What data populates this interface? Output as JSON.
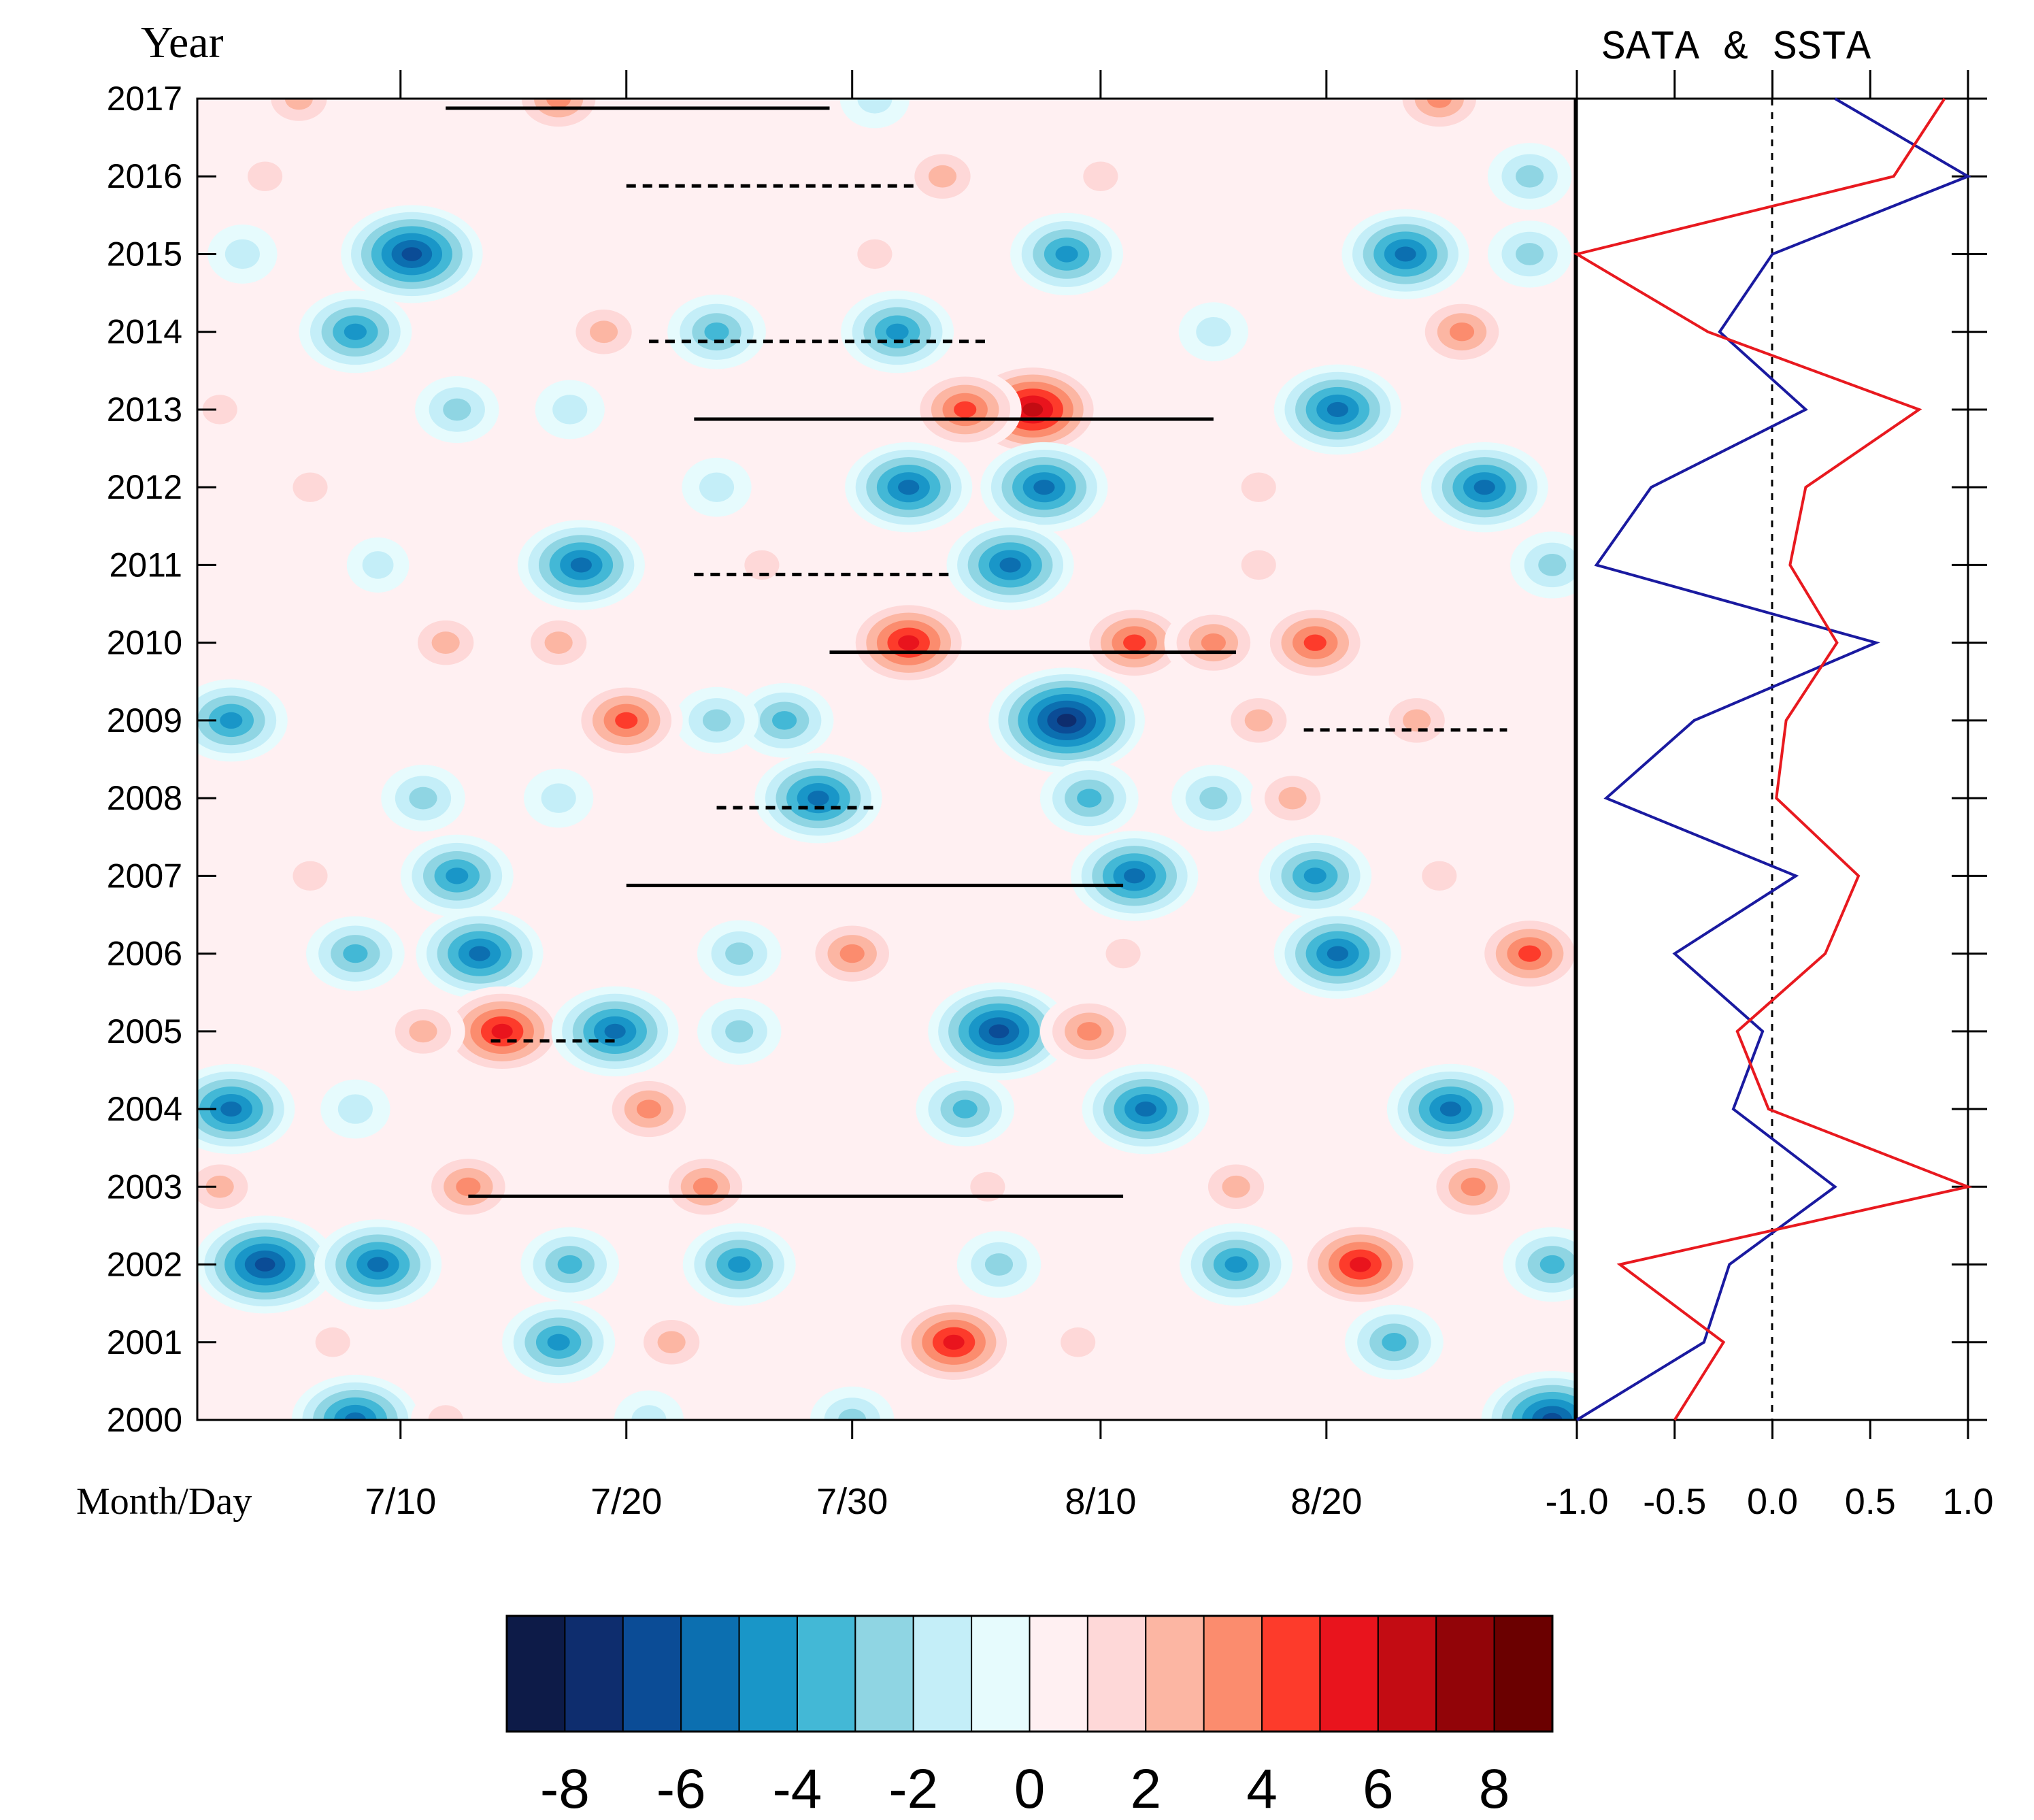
{
  "chart_data": [
    {
      "type": "heatmap",
      "title": "",
      "ylabel": "Year",
      "xlabel": "Month/Day",
      "years": [
        2000,
        2001,
        2002,
        2003,
        2004,
        2005,
        2006,
        2007,
        2008,
        2009,
        2010,
        2011,
        2012,
        2013,
        2014,
        2015,
        2016,
        2017
      ],
      "xlim_days": [
        0,
        61
      ],
      "x_ticks": [
        {
          "day": 9,
          "label": "7/10"
        },
        {
          "day": 19,
          "label": "7/20"
        },
        {
          "day": 29,
          "label": "7/30"
        },
        {
          "day": 40,
          "label": "8/10"
        },
        {
          "day": 50,
          "label": "8/20"
        }
      ],
      "anomalies": [
        {
          "year": 2017,
          "day": 16,
          "value": 4
        },
        {
          "year": 2017,
          "day": 4.5,
          "value": 3
        },
        {
          "year": 2017,
          "day": 30,
          "value": -2
        },
        {
          "year": 2017,
          "day": 55,
          "value": 4
        },
        {
          "year": 2016,
          "day": 3,
          "value": 2
        },
        {
          "year": 2016,
          "day": 33,
          "value": 3
        },
        {
          "year": 2016,
          "day": 40,
          "value": 2
        },
        {
          "year": 2016,
          "day": 59,
          "value": -3
        },
        {
          "year": 2015,
          "day": 9.5,
          "value": -7
        },
        {
          "year": 2015,
          "day": 38.5,
          "value": -5
        },
        {
          "year": 2015,
          "day": 53.5,
          "value": -6
        },
        {
          "year": 2015,
          "day": 59,
          "value": -3
        },
        {
          "year": 2015,
          "day": 2,
          "value": -2
        },
        {
          "year": 2015,
          "day": 30,
          "value": 2
        },
        {
          "year": 2014,
          "day": 7,
          "value": -5
        },
        {
          "year": 2014,
          "day": 23,
          "value": -4
        },
        {
          "year": 2014,
          "day": 31,
          "value": -5
        },
        {
          "year": 2014,
          "day": 18,
          "value": 3
        },
        {
          "year": 2014,
          "day": 56,
          "value": 4
        },
        {
          "year": 2014,
          "day": 45,
          "value": -2
        },
        {
          "year": 2013,
          "day": 37,
          "value": 7
        },
        {
          "year": 2013,
          "day": 34,
          "value": 5
        },
        {
          "year": 2013,
          "day": 50.5,
          "value": -6
        },
        {
          "year": 2013,
          "day": 11.5,
          "value": -3
        },
        {
          "year": 2013,
          "day": 16.5,
          "value": -2
        },
        {
          "year": 2013,
          "day": 1,
          "value": 2
        },
        {
          "year": 2012,
          "day": 31.5,
          "value": -6
        },
        {
          "year": 2012,
          "day": 37.5,
          "value": -6
        },
        {
          "year": 2012,
          "day": 57,
          "value": -6
        },
        {
          "year": 2012,
          "day": 5,
          "value": 2
        },
        {
          "year": 2012,
          "day": 47,
          "value": 2
        },
        {
          "year": 2012,
          "day": 23,
          "value": -2
        },
        {
          "year": 2011,
          "day": 17,
          "value": -6
        },
        {
          "year": 2011,
          "day": 36,
          "value": -6
        },
        {
          "year": 2011,
          "day": 60,
          "value": -3
        },
        {
          "year": 2011,
          "day": 8,
          "value": -1.5
        },
        {
          "year": 2011,
          "day": 25,
          "value": 2
        },
        {
          "year": 2011,
          "day": 47,
          "value": 2
        },
        {
          "year": 2010,
          "day": 31.5,
          "value": 6
        },
        {
          "year": 2010,
          "day": 41.5,
          "value": 5
        },
        {
          "year": 2010,
          "day": 49.5,
          "value": 5
        },
        {
          "year": 2010,
          "day": 45,
          "value": 4
        },
        {
          "year": 2010,
          "day": 16,
          "value": 3
        },
        {
          "year": 2010,
          "day": 11,
          "value": 3
        },
        {
          "year": 2009,
          "day": 1.5,
          "value": -5
        },
        {
          "year": 2009,
          "day": 38.5,
          "value": -8
        },
        {
          "year": 2009,
          "day": 26,
          "value": -4
        },
        {
          "year": 2009,
          "day": 23,
          "value": -3
        },
        {
          "year": 2009,
          "day": 19,
          "value": 5
        },
        {
          "year": 2009,
          "day": 47,
          "value": 3
        },
        {
          "year": 2009,
          "day": 54,
          "value": 3
        },
        {
          "year": 2008,
          "day": 27.5,
          "value": -6
        },
        {
          "year": 2008,
          "day": 16,
          "value": -2
        },
        {
          "year": 2008,
          "day": 39.5,
          "value": -4
        },
        {
          "year": 2008,
          "day": 45,
          "value": -3
        },
        {
          "year": 2008,
          "day": 48.5,
          "value": 3
        },
        {
          "year": 2008,
          "day": 10,
          "value": -3
        },
        {
          "year": 2007,
          "day": 41.5,
          "value": -6
        },
        {
          "year": 2007,
          "day": 11.5,
          "value": -5
        },
        {
          "year": 2007,
          "day": 49.5,
          "value": -5
        },
        {
          "year": 2007,
          "day": 55,
          "value": 2
        },
        {
          "year": 2007,
          "day": 5,
          "value": 2
        },
        {
          "year": 2006,
          "day": 12.5,
          "value": -6
        },
        {
          "year": 2006,
          "day": 7,
          "value": -4
        },
        {
          "year": 2006,
          "day": 50.5,
          "value": -6
        },
        {
          "year": 2006,
          "day": 59,
          "value": 5
        },
        {
          "year": 2006,
          "day": 29,
          "value": 4
        },
        {
          "year": 2006,
          "day": 24,
          "value": -3
        },
        {
          "year": 2006,
          "day": 41,
          "value": 2
        },
        {
          "year": 2005,
          "day": 13.5,
          "value": 6
        },
        {
          "year": 2005,
          "day": 18.5,
          "value": -6
        },
        {
          "year": 2005,
          "day": 35.5,
          "value": -7
        },
        {
          "year": 2005,
          "day": 39.5,
          "value": 4
        },
        {
          "year": 2005,
          "day": 24,
          "value": -3
        },
        {
          "year": 2005,
          "day": 10,
          "value": 3
        },
        {
          "year": 2004,
          "day": 1.5,
          "value": -6
        },
        {
          "year": 2004,
          "day": 42,
          "value": -6
        },
        {
          "year": 2004,
          "day": 55.5,
          "value": -6
        },
        {
          "year": 2004,
          "day": 34,
          "value": -4
        },
        {
          "year": 2004,
          "day": 20,
          "value": 4
        },
        {
          "year": 2004,
          "day": 7,
          "value": -2
        },
        {
          "year": 2003,
          "day": 12,
          "value": 4
        },
        {
          "year": 2003,
          "day": 22.5,
          "value": 4
        },
        {
          "year": 2003,
          "day": 1,
          "value": 3
        },
        {
          "year": 2003,
          "day": 56.5,
          "value": 4
        },
        {
          "year": 2003,
          "day": 46,
          "value": 3
        },
        {
          "year": 2003,
          "day": 35,
          "value": 2
        },
        {
          "year": 2002,
          "day": 3,
          "value": -7
        },
        {
          "year": 2002,
          "day": 8,
          "value": -6
        },
        {
          "year": 2002,
          "day": 24,
          "value": -5
        },
        {
          "year": 2002,
          "day": 51.5,
          "value": 6
        },
        {
          "year": 2002,
          "day": 46,
          "value": -5
        },
        {
          "year": 2002,
          "day": 35.5,
          "value": -3
        },
        {
          "year": 2002,
          "day": 60,
          "value": -4
        },
        {
          "year": 2002,
          "day": 16.5,
          "value": -4
        },
        {
          "year": 2001,
          "day": 33.5,
          "value": 6
        },
        {
          "year": 2001,
          "day": 16,
          "value": -5
        },
        {
          "year": 2001,
          "day": 21,
          "value": 3
        },
        {
          "year": 2001,
          "day": 53,
          "value": -4
        },
        {
          "year": 2001,
          "day": 6,
          "value": 2
        },
        {
          "year": 2001,
          "day": 39,
          "value": 2
        },
        {
          "year": 2000,
          "day": 7,
          "value": -6
        },
        {
          "year": 2000,
          "day": 60,
          "value": -7
        },
        {
          "year": 2000,
          "day": 29,
          "value": -3
        },
        {
          "year": 2000,
          "day": 11,
          "value": 2
        },
        {
          "year": 2000,
          "day": 20,
          "value": -2
        }
      ],
      "event_lines": [
        {
          "year": 2017,
          "start_day": 11,
          "end_day": 28,
          "style": "solid"
        },
        {
          "year": 2016,
          "start_day": 19,
          "end_day": 32,
          "style": "dashed"
        },
        {
          "year": 2014,
          "start_day": 20,
          "end_day": 35,
          "style": "dashed"
        },
        {
          "year": 2013,
          "start_day": 22,
          "end_day": 45,
          "style": "solid"
        },
        {
          "year": 2011,
          "start_day": 22,
          "end_day": 33.5,
          "style": "dashed"
        },
        {
          "year": 2010,
          "start_day": 28,
          "end_day": 46,
          "style": "solid"
        },
        {
          "year": 2009,
          "start_day": 49,
          "end_day": 58,
          "style": "dashed"
        },
        {
          "year": 2008,
          "start_day": 23,
          "end_day": 30,
          "style": "dashed"
        },
        {
          "year": 2007,
          "start_day": 19,
          "end_day": 41,
          "style": "solid"
        },
        {
          "year": 2005,
          "start_day": 13,
          "end_day": 18.5,
          "style": "dashed"
        },
        {
          "year": 2003,
          "start_day": 12,
          "end_day": 41,
          "style": "solid"
        }
      ]
    },
    {
      "type": "line",
      "title": "SATA & SSTA",
      "xlim": [
        -1.0,
        1.0
      ],
      "x_ticks": [
        "-1.0",
        "-0.5",
        "0.0",
        "0.5",
        "1.0"
      ],
      "years": [
        2000,
        2001,
        2002,
        2003,
        2004,
        2005,
        2006,
        2007,
        2008,
        2009,
        2010,
        2011,
        2012,
        2013,
        2014,
        2015,
        2016,
        2017
      ],
      "series": [
        {
          "name": "SATA",
          "color": "#1a1aa0",
          "values": [
            -1.0,
            -0.35,
            -0.22,
            0.32,
            -0.2,
            -0.05,
            -0.5,
            0.12,
            -0.85,
            -0.4,
            0.53,
            -0.9,
            -0.62,
            0.17,
            -0.27,
            0.0,
            1.0,
            0.32
          ]
        },
        {
          "name": "SSTA",
          "color": "#e8191f",
          "values": [
            -0.5,
            -0.25,
            -0.78,
            1.0,
            -0.02,
            -0.18,
            0.27,
            0.44,
            0.02,
            0.07,
            0.33,
            0.09,
            0.17,
            0.75,
            -0.33,
            -1.0,
            0.62,
            0.88
          ]
        }
      ]
    }
  ],
  "colorbar": {
    "colors": [
      "#0d1b48",
      "#0e2d6e",
      "#0b4c96",
      "#0c6fb0",
      "#1996c8",
      "#43b8d6",
      "#8fd5e3",
      "#c4eef8",
      "#e6fbfd",
      "#fff0f2",
      "#fed8d8",
      "#fcb6a3",
      "#fb8c6e",
      "#fd3b2b",
      "#e9141d",
      "#c30c13",
      "#920408",
      "#6b0000"
    ],
    "tick_labels": [
      "-8",
      "-6",
      "-4",
      "-2",
      "0",
      "2",
      "4",
      "6",
      "8"
    ]
  },
  "colors": {
    "axis": "#000000",
    "sata": "#1a1aa0",
    "ssta": "#e8191f"
  }
}
